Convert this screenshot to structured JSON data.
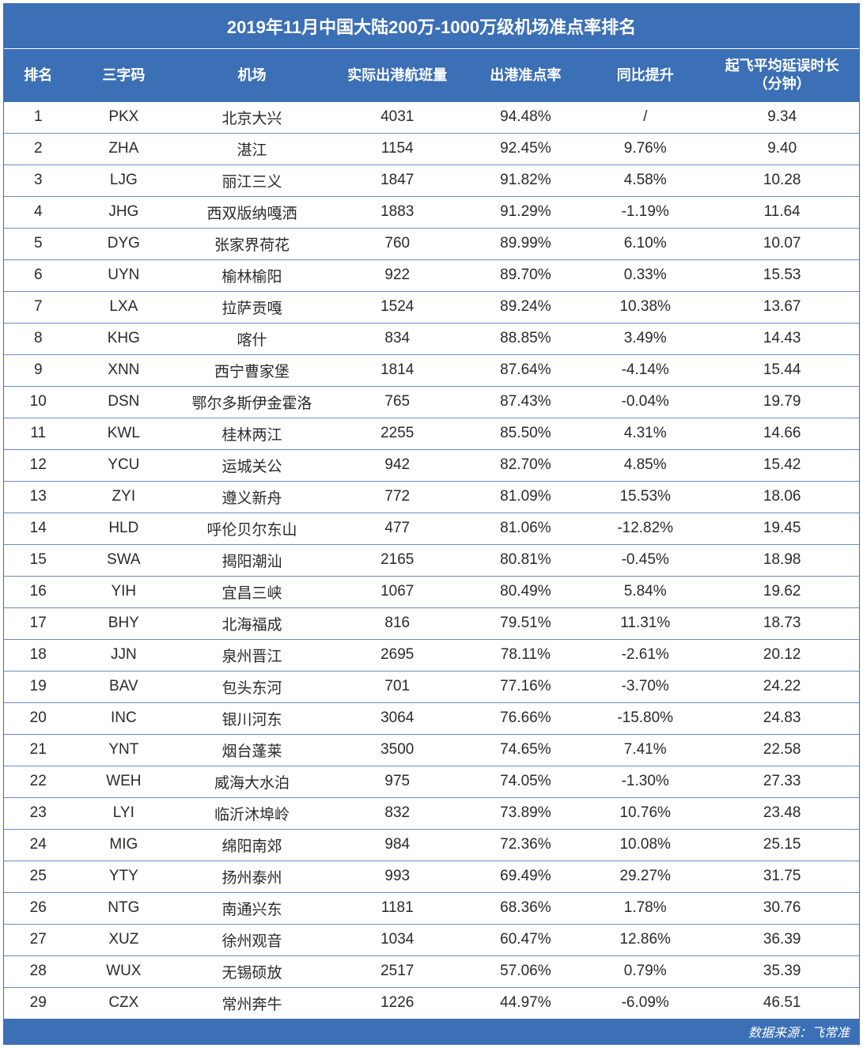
{
  "title": "2019年11月中国大陆200万-1000万级机场准点率排名",
  "columns": [
    "排名",
    "三字码",
    "机场",
    "实际出港航班量",
    "出港准点率",
    "同比提升",
    "起飞平均延误时长\n（分钟）"
  ],
  "colors": {
    "header_bg": "#3b6fb6",
    "header_text": "#ffffff",
    "row_text": "#2a2a2a",
    "row_border": "#6b8fc4",
    "background": "#ffffff"
  },
  "typography": {
    "title_fontsize": 22,
    "header_fontsize": 18,
    "cell_fontsize": 19,
    "footer_fontsize": 16,
    "font_family": "Microsoft YaHei"
  },
  "column_widths_pct": [
    8,
    12,
    18,
    16,
    14,
    14,
    18
  ],
  "rows": [
    {
      "rank": "1",
      "code": "PKX",
      "airport": "北京大兴",
      "flights": "4031",
      "ontime": "94.48%",
      "yoy": "/",
      "delay": "9.34"
    },
    {
      "rank": "2",
      "code": "ZHA",
      "airport": "湛江",
      "flights": "1154",
      "ontime": "92.45%",
      "yoy": "9.76%",
      "delay": "9.40"
    },
    {
      "rank": "3",
      "code": "LJG",
      "airport": "丽江三义",
      "flights": "1847",
      "ontime": "91.82%",
      "yoy": "4.58%",
      "delay": "10.28"
    },
    {
      "rank": "4",
      "code": "JHG",
      "airport": "西双版纳嘎洒",
      "flights": "1883",
      "ontime": "91.29%",
      "yoy": "-1.19%",
      "delay": "11.64"
    },
    {
      "rank": "5",
      "code": "DYG",
      "airport": "张家界荷花",
      "flights": "760",
      "ontime": "89.99%",
      "yoy": "6.10%",
      "delay": "10.07"
    },
    {
      "rank": "6",
      "code": "UYN",
      "airport": "榆林榆阳",
      "flights": "922",
      "ontime": "89.70%",
      "yoy": "0.33%",
      "delay": "15.53"
    },
    {
      "rank": "7",
      "code": "LXA",
      "airport": "拉萨贡嘎",
      "flights": "1524",
      "ontime": "89.24%",
      "yoy": "10.38%",
      "delay": "13.67"
    },
    {
      "rank": "8",
      "code": "KHG",
      "airport": "喀什",
      "flights": "834",
      "ontime": "88.85%",
      "yoy": "3.49%",
      "delay": "14.43"
    },
    {
      "rank": "9",
      "code": "XNN",
      "airport": "西宁曹家堡",
      "flights": "1814",
      "ontime": "87.64%",
      "yoy": "-4.14%",
      "delay": "15.44"
    },
    {
      "rank": "10",
      "code": "DSN",
      "airport": "鄂尔多斯伊金霍洛",
      "flights": "765",
      "ontime": "87.43%",
      "yoy": "-0.04%",
      "delay": "19.79"
    },
    {
      "rank": "11",
      "code": "KWL",
      "airport": "桂林两江",
      "flights": "2255",
      "ontime": "85.50%",
      "yoy": "4.31%",
      "delay": "14.66"
    },
    {
      "rank": "12",
      "code": "YCU",
      "airport": "运城关公",
      "flights": "942",
      "ontime": "82.70%",
      "yoy": "4.85%",
      "delay": "15.42"
    },
    {
      "rank": "13",
      "code": "ZYI",
      "airport": "遵义新舟",
      "flights": "772",
      "ontime": "81.09%",
      "yoy": "15.53%",
      "delay": "18.06"
    },
    {
      "rank": "14",
      "code": "HLD",
      "airport": "呼伦贝尔东山",
      "flights": "477",
      "ontime": "81.06%",
      "yoy": "-12.82%",
      "delay": "19.45"
    },
    {
      "rank": "15",
      "code": "SWA",
      "airport": "揭阳潮汕",
      "flights": "2165",
      "ontime": "80.81%",
      "yoy": "-0.45%",
      "delay": "18.98"
    },
    {
      "rank": "16",
      "code": "YIH",
      "airport": "宜昌三峡",
      "flights": "1067",
      "ontime": "80.49%",
      "yoy": "5.84%",
      "delay": "19.62"
    },
    {
      "rank": "17",
      "code": "BHY",
      "airport": "北海福成",
      "flights": "816",
      "ontime": "79.51%",
      "yoy": "11.31%",
      "delay": "18.73"
    },
    {
      "rank": "18",
      "code": "JJN",
      "airport": "泉州晋江",
      "flights": "2695",
      "ontime": "78.11%",
      "yoy": "-2.61%",
      "delay": "20.12"
    },
    {
      "rank": "19",
      "code": "BAV",
      "airport": "包头东河",
      "flights": "701",
      "ontime": "77.16%",
      "yoy": "-3.70%",
      "delay": "24.22"
    },
    {
      "rank": "20",
      "code": "INC",
      "airport": "银川河东",
      "flights": "3064",
      "ontime": "76.66%",
      "yoy": "-15.80%",
      "delay": "24.83"
    },
    {
      "rank": "21",
      "code": "YNT",
      "airport": "烟台蓬莱",
      "flights": "3500",
      "ontime": "74.65%",
      "yoy": "7.41%",
      "delay": "22.58"
    },
    {
      "rank": "22",
      "code": "WEH",
      "airport": "威海大水泊",
      "flights": "975",
      "ontime": "74.05%",
      "yoy": "-1.30%",
      "delay": "27.33"
    },
    {
      "rank": "23",
      "code": "LYI",
      "airport": "临沂沐埠岭",
      "flights": "832",
      "ontime": "73.89%",
      "yoy": "10.76%",
      "delay": "23.48"
    },
    {
      "rank": "24",
      "code": "MIG",
      "airport": "绵阳南郊",
      "flights": "984",
      "ontime": "72.36%",
      "yoy": "10.08%",
      "delay": "25.15"
    },
    {
      "rank": "25",
      "code": "YTY",
      "airport": "扬州泰州",
      "flights": "993",
      "ontime": "69.49%",
      "yoy": "29.27%",
      "delay": "31.75"
    },
    {
      "rank": "26",
      "code": "NTG",
      "airport": "南通兴东",
      "flights": "1181",
      "ontime": "68.36%",
      "yoy": "1.78%",
      "delay": "30.76"
    },
    {
      "rank": "27",
      "code": "XUZ",
      "airport": "徐州观音",
      "flights": "1034",
      "ontime": "60.47%",
      "yoy": "12.86%",
      "delay": "36.39"
    },
    {
      "rank": "28",
      "code": "WUX",
      "airport": "无锡硕放",
      "flights": "2517",
      "ontime": "57.06%",
      "yoy": "0.79%",
      "delay": "35.39"
    },
    {
      "rank": "29",
      "code": "CZX",
      "airport": "常州奔牛",
      "flights": "1226",
      "ontime": "44.97%",
      "yoy": "-6.09%",
      "delay": "46.51"
    }
  ],
  "footer": "数据来源：飞常准"
}
